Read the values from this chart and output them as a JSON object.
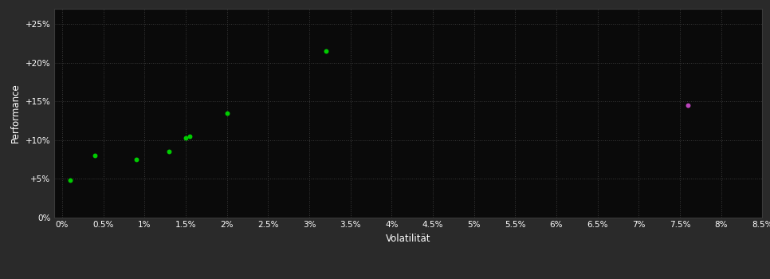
{
  "background_color": "#2a2a2a",
  "plot_bg_color": "#0a0a0a",
  "grid_color": "#3a3a3a",
  "grid_style": ":",
  "xlabel": "Volatilität",
  "ylabel": "Performance",
  "text_color": "#ffffff",
  "green_points": [
    [
      0.001,
      0.048
    ],
    [
      0.004,
      0.08
    ],
    [
      0.009,
      0.075
    ],
    [
      0.013,
      0.085
    ],
    [
      0.015,
      0.103
    ],
    [
      0.0155,
      0.105
    ],
    [
      0.02,
      0.135
    ],
    [
      0.032,
      0.215
    ]
  ],
  "magenta_points": [
    [
      0.076,
      0.145
    ]
  ],
  "green_color": "#00cc00",
  "magenta_color": "#bb44bb",
  "marker_size": 18,
  "xlim": [
    -0.001,
    0.085
  ],
  "ylim": [
    0.0,
    0.27
  ],
  "x_ticks": [
    0.0,
    0.005,
    0.01,
    0.015,
    0.02,
    0.025,
    0.03,
    0.035,
    0.04,
    0.045,
    0.05,
    0.055,
    0.06,
    0.065,
    0.07,
    0.075,
    0.08,
    0.085
  ],
  "x_tick_labels": [
    "0%",
    "0.5%",
    "1%",
    "1.5%",
    "2%",
    "2.5%",
    "3%",
    "3.5%",
    "4%",
    "4.5%",
    "5%",
    "5.5%",
    "6%",
    "6.5%",
    "7%",
    "7.5%",
    "8%",
    "8.5%"
  ],
  "y_ticks": [
    0.0,
    0.05,
    0.1,
    0.15,
    0.2,
    0.25
  ],
  "y_tick_labels": [
    "0%",
    "+5%",
    "+10%",
    "+15%",
    "+20%",
    "+25%"
  ],
  "tick_fontsize": 7.5,
  "label_fontsize": 8.5
}
